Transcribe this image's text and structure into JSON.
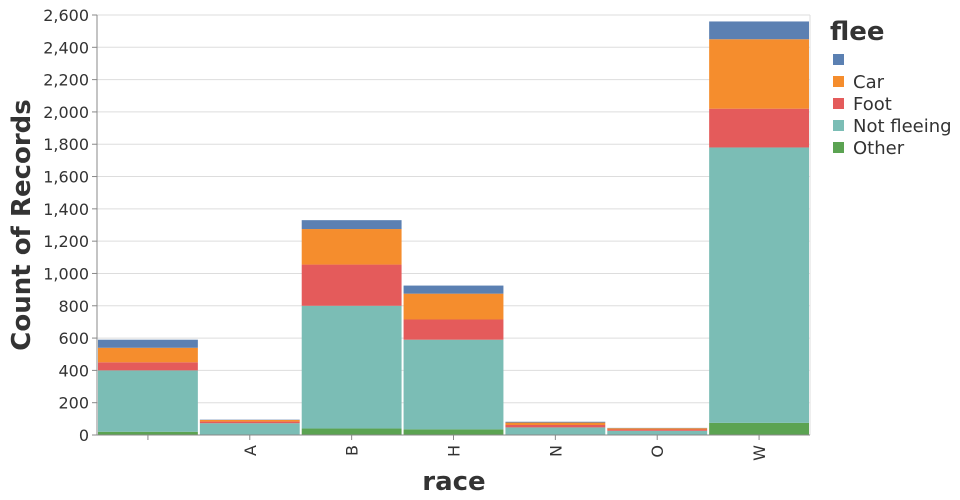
{
  "chart_data": {
    "type": "bar",
    "stacked": true,
    "xlabel": "race",
    "ylabel": "Count of Records",
    "ylim": [
      0,
      2600
    ],
    "yticks": [
      0,
      200,
      400,
      600,
      800,
      1000,
      1200,
      1400,
      1600,
      1800,
      2000,
      2200,
      2400,
      2600
    ],
    "grid": true,
    "categories": [
      "",
      "A",
      "B",
      "H",
      "N",
      "O",
      "W"
    ],
    "legend": {
      "title": "flee",
      "position": "right",
      "entries": [
        {
          "name": "",
          "color": "#5b80b2"
        },
        {
          "name": "Car",
          "color": "#f58d2d"
        },
        {
          "name": "Foot",
          "color": "#e45b5b"
        },
        {
          "name": "Not fleeing",
          "color": "#7bbdb5"
        },
        {
          "name": "Other",
          "color": "#5ba352"
        }
      ]
    },
    "series": [
      {
        "name": "Other",
        "color": "#5ba352",
        "values": [
          20,
          3,
          40,
          35,
          2,
          1,
          75
        ]
      },
      {
        "name": "Not fleeing",
        "color": "#7bbdb5",
        "values": [
          380,
          70,
          760,
          555,
          45,
          25,
          1705
        ]
      },
      {
        "name": "Foot",
        "color": "#e45b5b",
        "values": [
          50,
          10,
          255,
          125,
          15,
          8,
          240
        ]
      },
      {
        "name": "Car",
        "color": "#f58d2d",
        "values": [
          90,
          10,
          220,
          160,
          15,
          8,
          430
        ]
      },
      {
        "name": "",
        "color": "#5b80b2",
        "values": [
          50,
          2,
          55,
          50,
          5,
          2,
          110
        ]
      }
    ]
  }
}
